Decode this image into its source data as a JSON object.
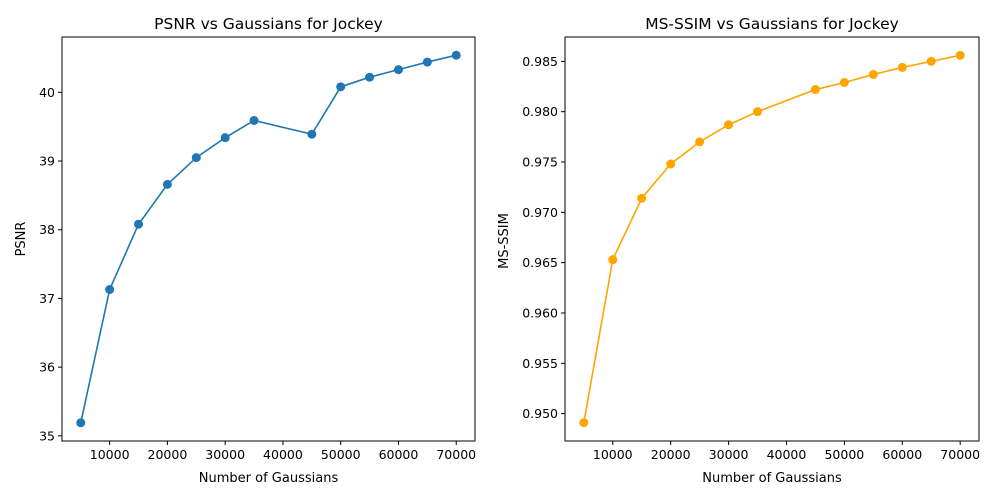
{
  "chart_data": [
    {
      "type": "line",
      "title": "PSNR vs Gaussians for Jockey",
      "xlabel": "Number of Gaussians",
      "ylabel": "PSNR",
      "color": "#1f77b4",
      "marker": "circle",
      "x": [
        5000,
        10000,
        15000,
        20000,
        25000,
        30000,
        35000,
        45000,
        50000,
        55000,
        60000,
        65000,
        70000
      ],
      "y": [
        35.19,
        37.13,
        38.08,
        38.66,
        39.05,
        39.34,
        39.59,
        39.39,
        40.08,
        40.22,
        40.33,
        40.44,
        40.54
      ],
      "xlim": [
        1750,
        73250
      ],
      "ylim": [
        34.925,
        40.805
      ],
      "xticks": [
        10000,
        20000,
        30000,
        40000,
        50000,
        60000,
        70000
      ],
      "xtick_labels": [
        "10000",
        "20000",
        "30000",
        "40000",
        "50000",
        "60000",
        "70000"
      ],
      "yticks": [
        35,
        36,
        37,
        38,
        39,
        40
      ],
      "ytick_labels": [
        "35",
        "36",
        "37",
        "38",
        "39",
        "40"
      ],
      "grid": false
    },
    {
      "type": "line",
      "title": "MS-SSIM vs Gaussians for Jockey",
      "xlabel": "Number of Gaussians",
      "ylabel": "MS-SSIM",
      "color": "#ffa500",
      "marker": "circle",
      "x": [
        5000,
        10000,
        15000,
        20000,
        25000,
        30000,
        35000,
        45000,
        50000,
        55000,
        60000,
        65000,
        70000
      ],
      "y": [
        0.9491,
        0.9653,
        0.9714,
        0.9748,
        0.977,
        0.9787,
        0.98,
        0.9822,
        0.9829,
        0.9837,
        0.9844,
        0.985,
        0.9856
      ],
      "xlim": [
        1750,
        73250
      ],
      "ylim": [
        0.94728,
        0.98742
      ],
      "xticks": [
        10000,
        20000,
        30000,
        40000,
        50000,
        60000,
        70000
      ],
      "xtick_labels": [
        "10000",
        "20000",
        "30000",
        "40000",
        "50000",
        "60000",
        "70000"
      ],
      "yticks": [
        0.95,
        0.955,
        0.96,
        0.965,
        0.97,
        0.975,
        0.98,
        0.985
      ],
      "ytick_labels": [
        "0.950",
        "0.955",
        "0.960",
        "0.965",
        "0.970",
        "0.975",
        "0.980",
        "0.985"
      ],
      "grid": false
    }
  ]
}
